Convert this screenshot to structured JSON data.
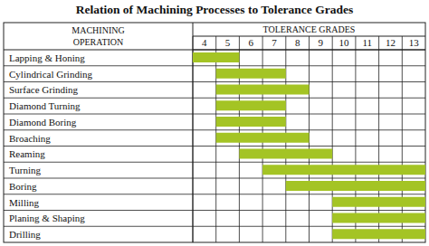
{
  "chart_data": {
    "type": "bar",
    "orientation": "horizontal",
    "title": "Relation of Machining Processes to Tolerance Grades",
    "y_label": "MACHINING OPERATION",
    "x_label": "TOLERANCE GRADES",
    "categories": [
      "Lapping & Honing",
      "Cylindrical Grinding",
      "Surface Grinding",
      "Diamond Turning",
      "Diamond Boring",
      "Broaching",
      "Reaming",
      "Turning",
      "Boring",
      "Milling",
      "Planing & Shaping",
      "Drilling"
    ],
    "start": [
      4,
      5,
      5,
      5,
      5,
      5,
      6,
      7,
      8,
      10,
      10,
      10
    ],
    "end": [
      5,
      7,
      8,
      7,
      7,
      8,
      9,
      13,
      13,
      13,
      13,
      13
    ],
    "color": "#a4c424",
    "xlim": [
      4,
      14
    ],
    "xticks": [
      4,
      5,
      6,
      7,
      8,
      9,
      10,
      11,
      12,
      13
    ],
    "grid": true
  }
}
